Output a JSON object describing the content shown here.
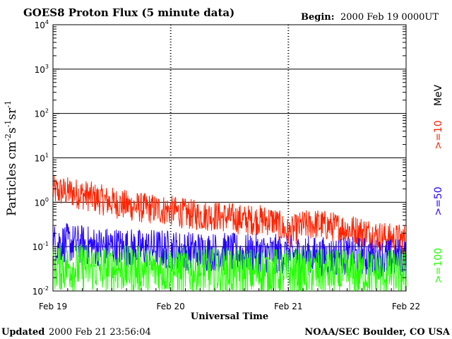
{
  "header": {
    "title": "GOES8 Proton Flux (5 minute data)",
    "begin_label": "Begin:",
    "begin_value": "2000 Feb 19 0000UT"
  },
  "footer": {
    "updated_label": "Updated",
    "updated_value": "2000 Feb 21 23:56:04",
    "credit": "NOAA/SEC Boulder, CO USA"
  },
  "chart_data": {
    "type": "line",
    "title": "GOES8 Proton Flux (5 minute data)",
    "xlabel": "Universal Time",
    "ylabel_parts": [
      "Particles cm",
      "-2",
      "s",
      "-1",
      "sr",
      "-1"
    ],
    "yscale": "log",
    "ylim": [
      0.01,
      10000
    ],
    "xlim": [
      0,
      3
    ],
    "x_ticks": [
      {
        "x": 0,
        "label": "Feb 19"
      },
      {
        "x": 1,
        "label": "Feb 20"
      },
      {
        "x": 2,
        "label": "Feb 21"
      },
      {
        "x": 3,
        "label": "Feb 22"
      }
    ],
    "y_ticks": [
      {
        "value": 0.01,
        "base": "10",
        "exp": "-2"
      },
      {
        "value": 0.1,
        "base": "10",
        "exp": "-1"
      },
      {
        "value": 1,
        "base": "10",
        "exp": "0"
      },
      {
        "value": 10,
        "base": "10",
        "exp": "1"
      },
      {
        "value": 100,
        "base": "10",
        "exp": "2"
      },
      {
        "value": 1000,
        "base": "10",
        "exp": "3"
      },
      {
        "value": 10000,
        "base": "10",
        "exp": "4"
      }
    ],
    "grid": true,
    "legend_unit": "MeV",
    "series": [
      {
        "name": ">=10",
        "color": "#ff2200",
        "x": [
          0,
          0.125,
          0.25,
          0.375,
          0.5,
          0.625,
          0.75,
          0.875,
          1.0,
          1.125,
          1.25,
          1.375,
          1.5,
          1.625,
          1.75,
          1.875,
          2.0,
          2.125,
          2.25,
          2.375,
          2.5,
          2.625,
          2.75,
          2.875,
          3.0
        ],
        "values": [
          1.8,
          1.7,
          1.5,
          1.2,
          1.0,
          0.85,
          0.75,
          0.7,
          0.65,
          0.55,
          0.5,
          0.5,
          0.45,
          0.4,
          0.4,
          0.38,
          0.2,
          0.3,
          0.32,
          0.28,
          0.25,
          0.22,
          0.18,
          0.15,
          0.15
        ]
      },
      {
        "name": ">=50",
        "color": "#2200ff",
        "x": [
          0,
          0.125,
          0.25,
          0.375,
          0.5,
          0.625,
          0.75,
          0.875,
          1.0,
          1.125,
          1.25,
          1.375,
          1.5,
          1.625,
          1.75,
          1.875,
          2.0,
          2.125,
          2.25,
          2.375,
          2.5,
          2.625,
          2.75,
          2.875,
          3.0
        ],
        "values": [
          0.12,
          0.12,
          0.11,
          0.1,
          0.1,
          0.095,
          0.09,
          0.09,
          0.085,
          0.08,
          0.08,
          0.075,
          0.075,
          0.07,
          0.07,
          0.07,
          0.065,
          0.065,
          0.06,
          0.06,
          0.06,
          0.06,
          0.055,
          0.055,
          0.06
        ]
      },
      {
        "name": ">=100",
        "color": "#22ff00",
        "x": [
          0,
          0.125,
          0.25,
          0.375,
          0.5,
          0.625,
          0.75,
          0.875,
          1.0,
          1.125,
          1.25,
          1.375,
          1.5,
          1.625,
          1.75,
          1.875,
          2.0,
          2.125,
          2.25,
          2.375,
          2.5,
          2.625,
          2.75,
          2.875,
          3.0
        ],
        "values": [
          0.035,
          0.035,
          0.034,
          0.033,
          0.032,
          0.031,
          0.03,
          0.03,
          0.03,
          0.029,
          0.028,
          0.028,
          0.028,
          0.027,
          0.027,
          0.027,
          0.026,
          0.026,
          0.026,
          0.025,
          0.025,
          0.025,
          0.025,
          0.025,
          0.025
        ]
      }
    ]
  }
}
